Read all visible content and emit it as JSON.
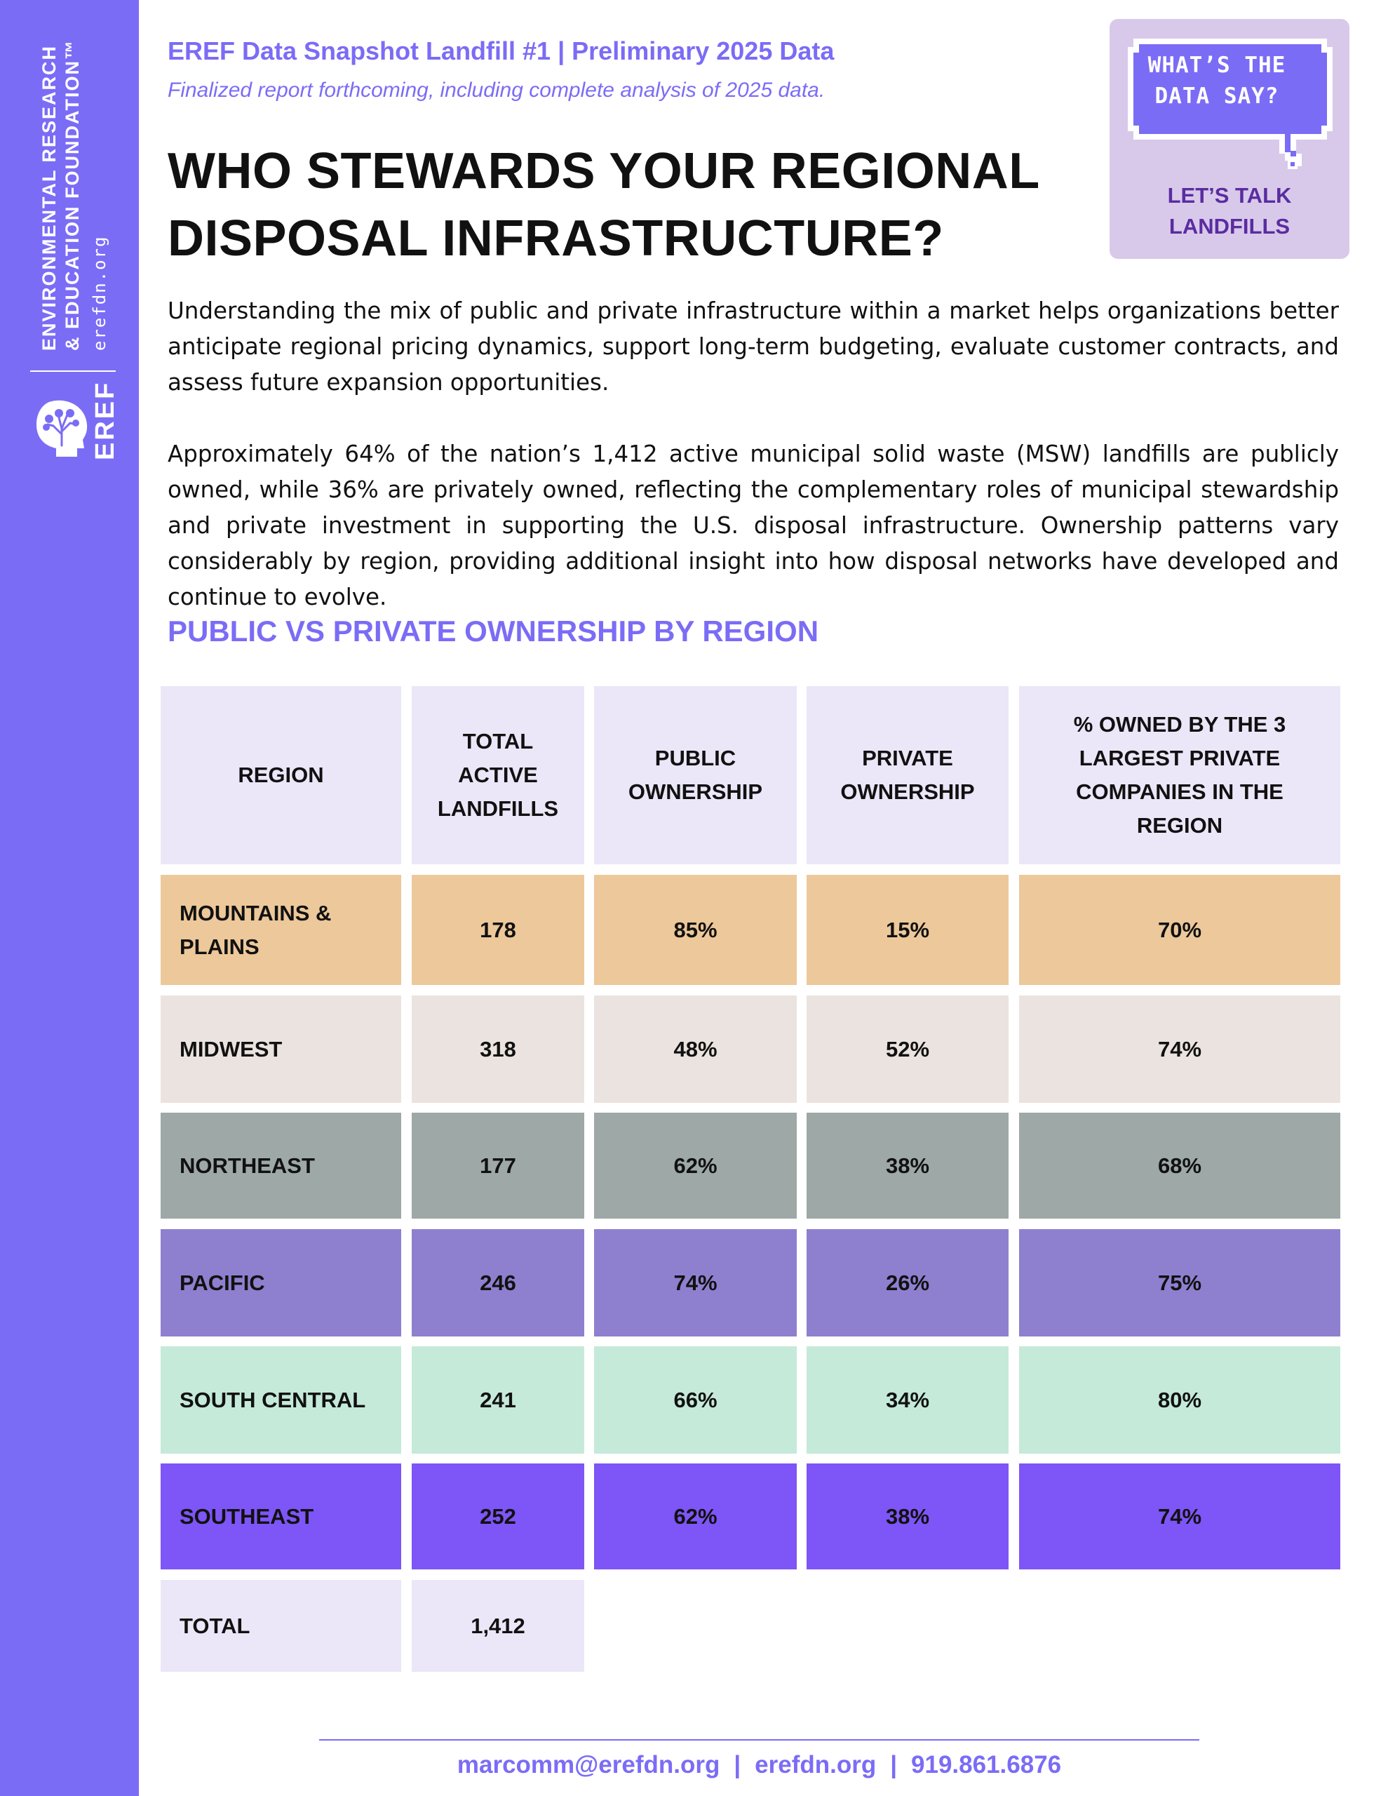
{
  "sidebar": {
    "org_line1": "ENVIRONMENTAL RESEARCH",
    "org_line2": "& EDUCATION FOUNDATION™",
    "website": "erefdn.org",
    "logo_text": "EREF",
    "logo_icon": "tree-head-icon",
    "color": "#7b6cf6"
  },
  "header": {
    "line": "EREF Data Snapshot Landfill #1 | Preliminary 2025 Data",
    "subline": "Finalized report forthcoming, including complete analysis of 2025 data."
  },
  "title": {
    "line1": "WHO STEWARDS YOUR REGIONAL",
    "line2": "DISPOSAL INFRASTRUCTURE?"
  },
  "badge": {
    "bubble_line1": "WHAT’S THE",
    "bubble_line2": "DATA SAY?",
    "caption_line1": "LET’S TALK",
    "caption_line2": "LANDFILLS",
    "icon": "speech-bubble-icon"
  },
  "paragraphs": [
    "Understanding the mix of public and private infrastructure within a market helps organizations better anticipate regional pricing dynamics, support long-term budgeting, evaluate customer contracts, and assess future expansion opportunities.",
    "Approximately 64% of the nation’s 1,412 active municipal solid waste (MSW) landfills are publicly owned, while 36% are privately owned, reflecting the complementary roles of municipal stewardship and private investment in supporting the U.S. disposal infrastructure. Ownership patterns vary considerably by region, providing additional insight into how disposal networks have developed and continue to evolve."
  ],
  "section_title": "PUBLIC VS PRIVATE OWNERSHIP BY REGION",
  "table": {
    "headers": [
      [
        "REGION"
      ],
      [
        "TOTAL",
        "ACTIVE",
        "LANDFILLS"
      ],
      [
        "PUBLIC",
        "OWNERSHIP"
      ],
      [
        "PRIVATE",
        "OWNERSHIP"
      ],
      [
        "% OWNED BY THE 3",
        "LARGEST PRIVATE",
        "COMPANIES IN THE",
        "REGION"
      ]
    ],
    "rows": [
      {
        "region_line1": "MOUNTAINS &",
        "region_line2": "PLAINS",
        "total": "178",
        "public": "85%",
        "private": "15%",
        "top3": "70%",
        "color": "#edc89a"
      },
      {
        "region_line1": "MIDWEST",
        "region_line2": "",
        "total": "318",
        "public": "48%",
        "private": "52%",
        "top3": "74%",
        "color": "#ebe3df"
      },
      {
        "region_line1": "NORTHEAST",
        "region_line2": "",
        "total": "177",
        "public": "62%",
        "private": "38%",
        "top3": "68%",
        "color": "#9ea8a6"
      },
      {
        "region_line1": "PACIFIC",
        "region_line2": "",
        "total": "246",
        "public": "74%",
        "private": "26%",
        "top3": "75%",
        "color": "#8e80cf"
      },
      {
        "region_line1": "SOUTH CENTRAL",
        "region_line2": "",
        "total": "241",
        "public": "66%",
        "private": "34%",
        "top3": "80%",
        "color": "#c5ead9"
      },
      {
        "region_line1": "SOUTHEAST",
        "region_line2": "",
        "total": "252",
        "public": "62%",
        "private": "38%",
        "top3": "74%",
        "color": "#7e55f6"
      }
    ],
    "total": {
      "label": "TOTAL",
      "value": "1,412"
    },
    "header_color": "#ebe7f8"
  },
  "footer": {
    "email": "marcomm@erefdn.org",
    "site": "erefdn.org",
    "phone": "919.861.6876",
    "separator": "|"
  }
}
